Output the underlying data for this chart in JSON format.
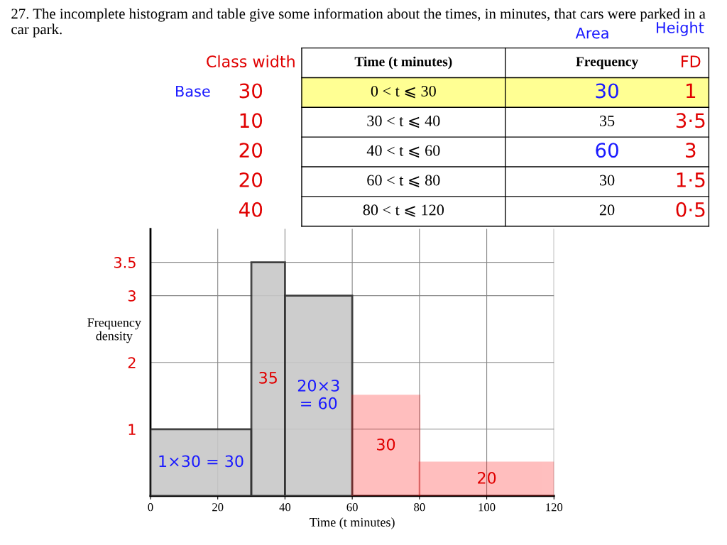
{
  "chart_data": {
    "type": "histogram",
    "title": "27. The incomplete histogram and table give some information about the times, in minutes, that cars were parked in a car park.",
    "xlabel": "Time (t minutes)",
    "ylabel": "Frequency\ndensity",
    "bins": [
      0,
      30,
      40,
      60,
      80,
      120
    ],
    "values": [
      1,
      3.5,
      3,
      1.5,
      0.5
    ],
    "colors": [
      "#c8c8c8",
      "#c8c8c8",
      "#c8c8c8",
      "#ff0000",
      "#ff0000"
    ],
    "xlim": [
      0,
      120
    ],
    "ylim": [
      0,
      4
    ],
    "xticks": [
      0,
      20,
      40,
      60,
      80,
      100,
      120
    ],
    "yticks": [
      {
        "value": 1,
        "label": "1"
      },
      {
        "value": 2,
        "label": "2"
      },
      {
        "value": 3,
        "label": "3"
      },
      {
        "value": 3.5,
        "label": "3.5"
      }
    ],
    "grid": true,
    "annotations": [
      "Class width",
      "Time (t minutes)",
      "Frequency",
      "FD",
      "30",
      "0 < t ⩽ 30",
      "30",
      "1",
      "10",
      "30 < t ⩽ 40",
      "35",
      "3·5",
      "20",
      "40 < t ⩽ 60",
      "60",
      "3",
      "20",
      "60 < t ⩽ 80",
      "30",
      "1·5",
      "40",
      "80 < t ⩽ 120",
      "20",
      "0·5",
      "Base",
      "Area",
      "Height",
      "1×30 = 30",
      "35",
      "20×3\n= 60",
      "30",
      "20"
    ]
  }
}
